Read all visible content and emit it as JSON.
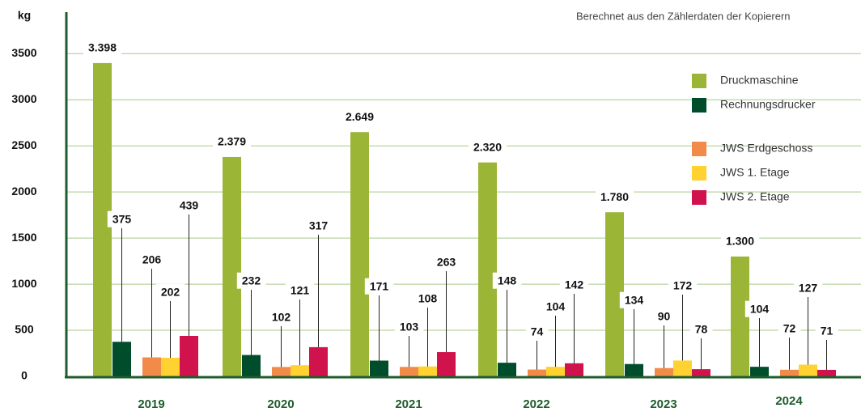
{
  "chart_data": {
    "type": "bar",
    "y_label": "kg",
    "annotation": "Berechnet aus den Zählerdaten der Kopierern",
    "categories": [
      "2019",
      "2020",
      "2021",
      "2022",
      "2023",
      "2024"
    ],
    "series": [
      {
        "name": "Druckmaschine",
        "color": "#9bb536",
        "values": [
          3398,
          2379,
          2649,
          2320,
          1780,
          1300
        ],
        "value_labels": [
          "3.398",
          "2.379",
          "2.649",
          "2.320",
          "1.780",
          "1.300"
        ]
      },
      {
        "name": "Rechnungsdrucker",
        "color": "#004d2c",
        "values": [
          375,
          232,
          171,
          148,
          134,
          104
        ]
      },
      {
        "name": "JWS Erdgeschoss",
        "color": "#f28a4a",
        "values": [
          206,
          102,
          103,
          74,
          90,
          72
        ]
      },
      {
        "name": "JWS 1. Etage",
        "color": "#ffd131",
        "values": [
          202,
          121,
          108,
          104,
          172,
          127
        ]
      },
      {
        "name": "JWS 2. Etage",
        "color": "#d0134c",
        "values": [
          439,
          317,
          263,
          142,
          78,
          71
        ]
      }
    ],
    "ylim": [
      0,
      3950
    ],
    "yticks": [
      0,
      500,
      1000,
      1500,
      2000,
      2500,
      3000,
      3500
    ],
    "grid": true
  }
}
